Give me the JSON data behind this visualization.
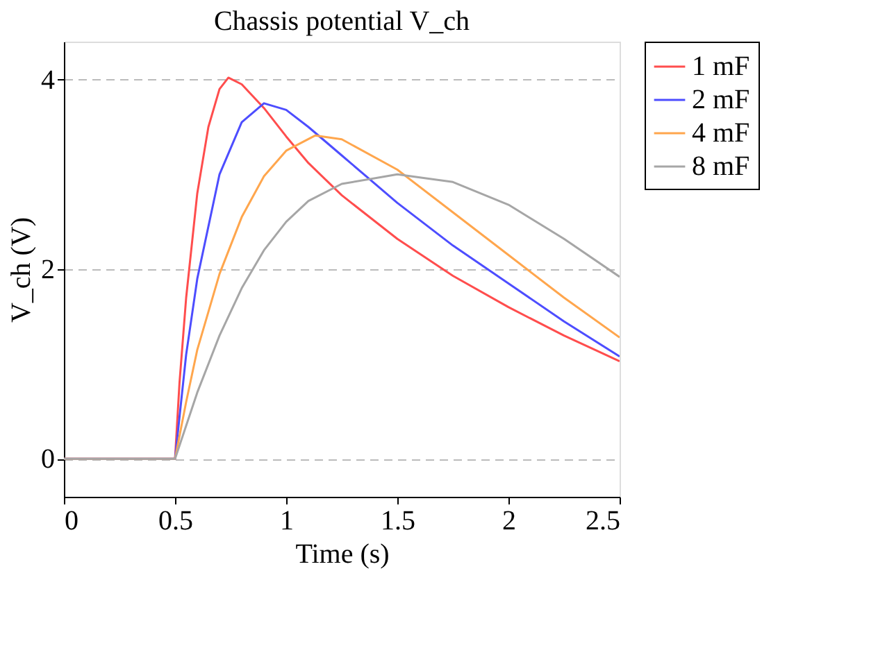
{
  "chart_data": {
    "type": "line",
    "title": "Chassis potential V_ch",
    "xlabel": "Time (s)",
    "ylabel": "V_ch (V)",
    "xlim": [
      0,
      2.5
    ],
    "ylim": [
      -0.4,
      4.4
    ],
    "xticks": [
      0,
      0.5,
      1,
      1.5,
      2,
      2.5
    ],
    "yticks": [
      0,
      2,
      4
    ],
    "grid": "y",
    "legend": "right",
    "line_style": "solid",
    "marker": "none",
    "series": [
      {
        "name": "1 mF",
        "color": "#ff4d4d",
        "x": [
          0,
          0.5,
          0.52,
          0.55,
          0.6,
          0.65,
          0.7,
          0.74,
          0.8,
          0.9,
          1.0,
          1.1,
          1.25,
          1.5,
          1.75,
          2.0,
          2.25,
          2.5
        ],
        "values": [
          0,
          0,
          0.8,
          1.7,
          2.8,
          3.5,
          3.9,
          4.02,
          3.95,
          3.7,
          3.4,
          3.12,
          2.78,
          2.32,
          1.93,
          1.6,
          1.3,
          1.03
        ]
      },
      {
        "name": "2 mF",
        "color": "#4d4dff",
        "x": [
          0,
          0.5,
          0.55,
          0.6,
          0.7,
          0.8,
          0.9,
          1.0,
          1.1,
          1.25,
          1.5,
          1.75,
          2.0,
          2.25,
          2.5
        ],
        "values": [
          0,
          0,
          1.1,
          1.9,
          3.0,
          3.55,
          3.75,
          3.68,
          3.5,
          3.2,
          2.7,
          2.25,
          1.85,
          1.45,
          1.08
        ]
      },
      {
        "name": "4 mF",
        "color": "#ffa64d",
        "x": [
          0,
          0.5,
          0.55,
          0.6,
          0.7,
          0.8,
          0.9,
          1.0,
          1.13,
          1.25,
          1.5,
          1.75,
          2.0,
          2.25,
          2.5
        ],
        "values": [
          0,
          0,
          0.6,
          1.15,
          1.95,
          2.55,
          2.98,
          3.25,
          3.41,
          3.37,
          3.05,
          2.6,
          2.15,
          1.7,
          1.28
        ]
      },
      {
        "name": "8 mF",
        "color": "#a6a6a6",
        "x": [
          0,
          0.5,
          0.55,
          0.6,
          0.7,
          0.8,
          0.9,
          1.0,
          1.1,
          1.25,
          1.5,
          1.75,
          2.0,
          2.25,
          2.5
        ],
        "values": [
          0,
          0,
          0.35,
          0.7,
          1.3,
          1.8,
          2.2,
          2.5,
          2.72,
          2.9,
          3.0,
          2.92,
          2.68,
          2.32,
          1.92
        ]
      }
    ]
  }
}
